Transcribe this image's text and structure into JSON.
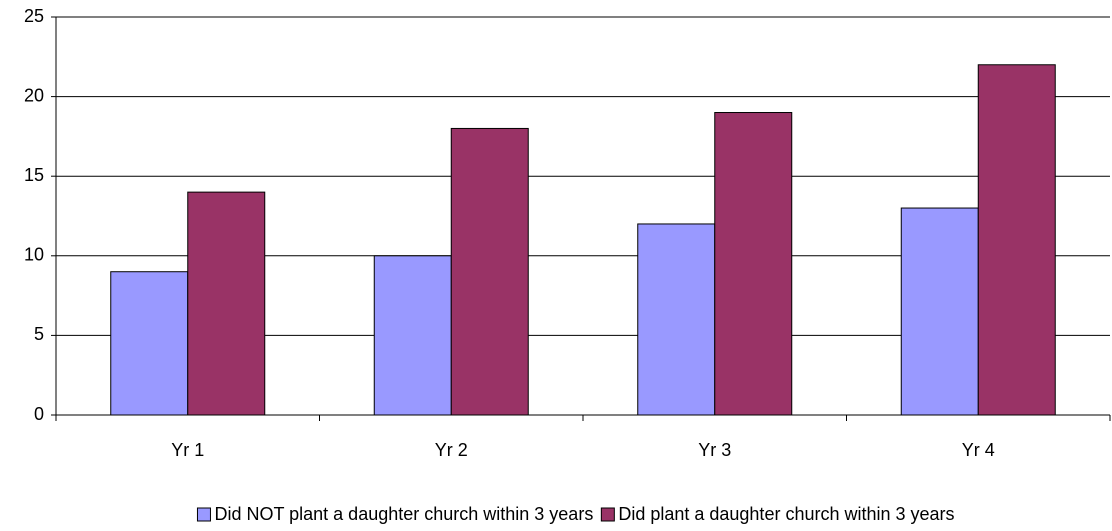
{
  "chart_data": {
    "type": "bar",
    "categories": [
      "Yr 1",
      "Yr 2",
      "Yr 3",
      "Yr 4"
    ],
    "series": [
      {
        "name": "Did NOT plant a daughter church within 3 years",
        "color": "#9999ff",
        "values": [
          9,
          10,
          12,
          13
        ]
      },
      {
        "name": "Did plant a daughter church within 3 years",
        "color": "#993366",
        "values": [
          14,
          18,
          19,
          22
        ]
      }
    ],
    "ylim": [
      0,
      25
    ],
    "yticks": [
      0,
      5,
      10,
      15,
      20,
      25
    ],
    "grid": true,
    "legend": "bottom"
  }
}
